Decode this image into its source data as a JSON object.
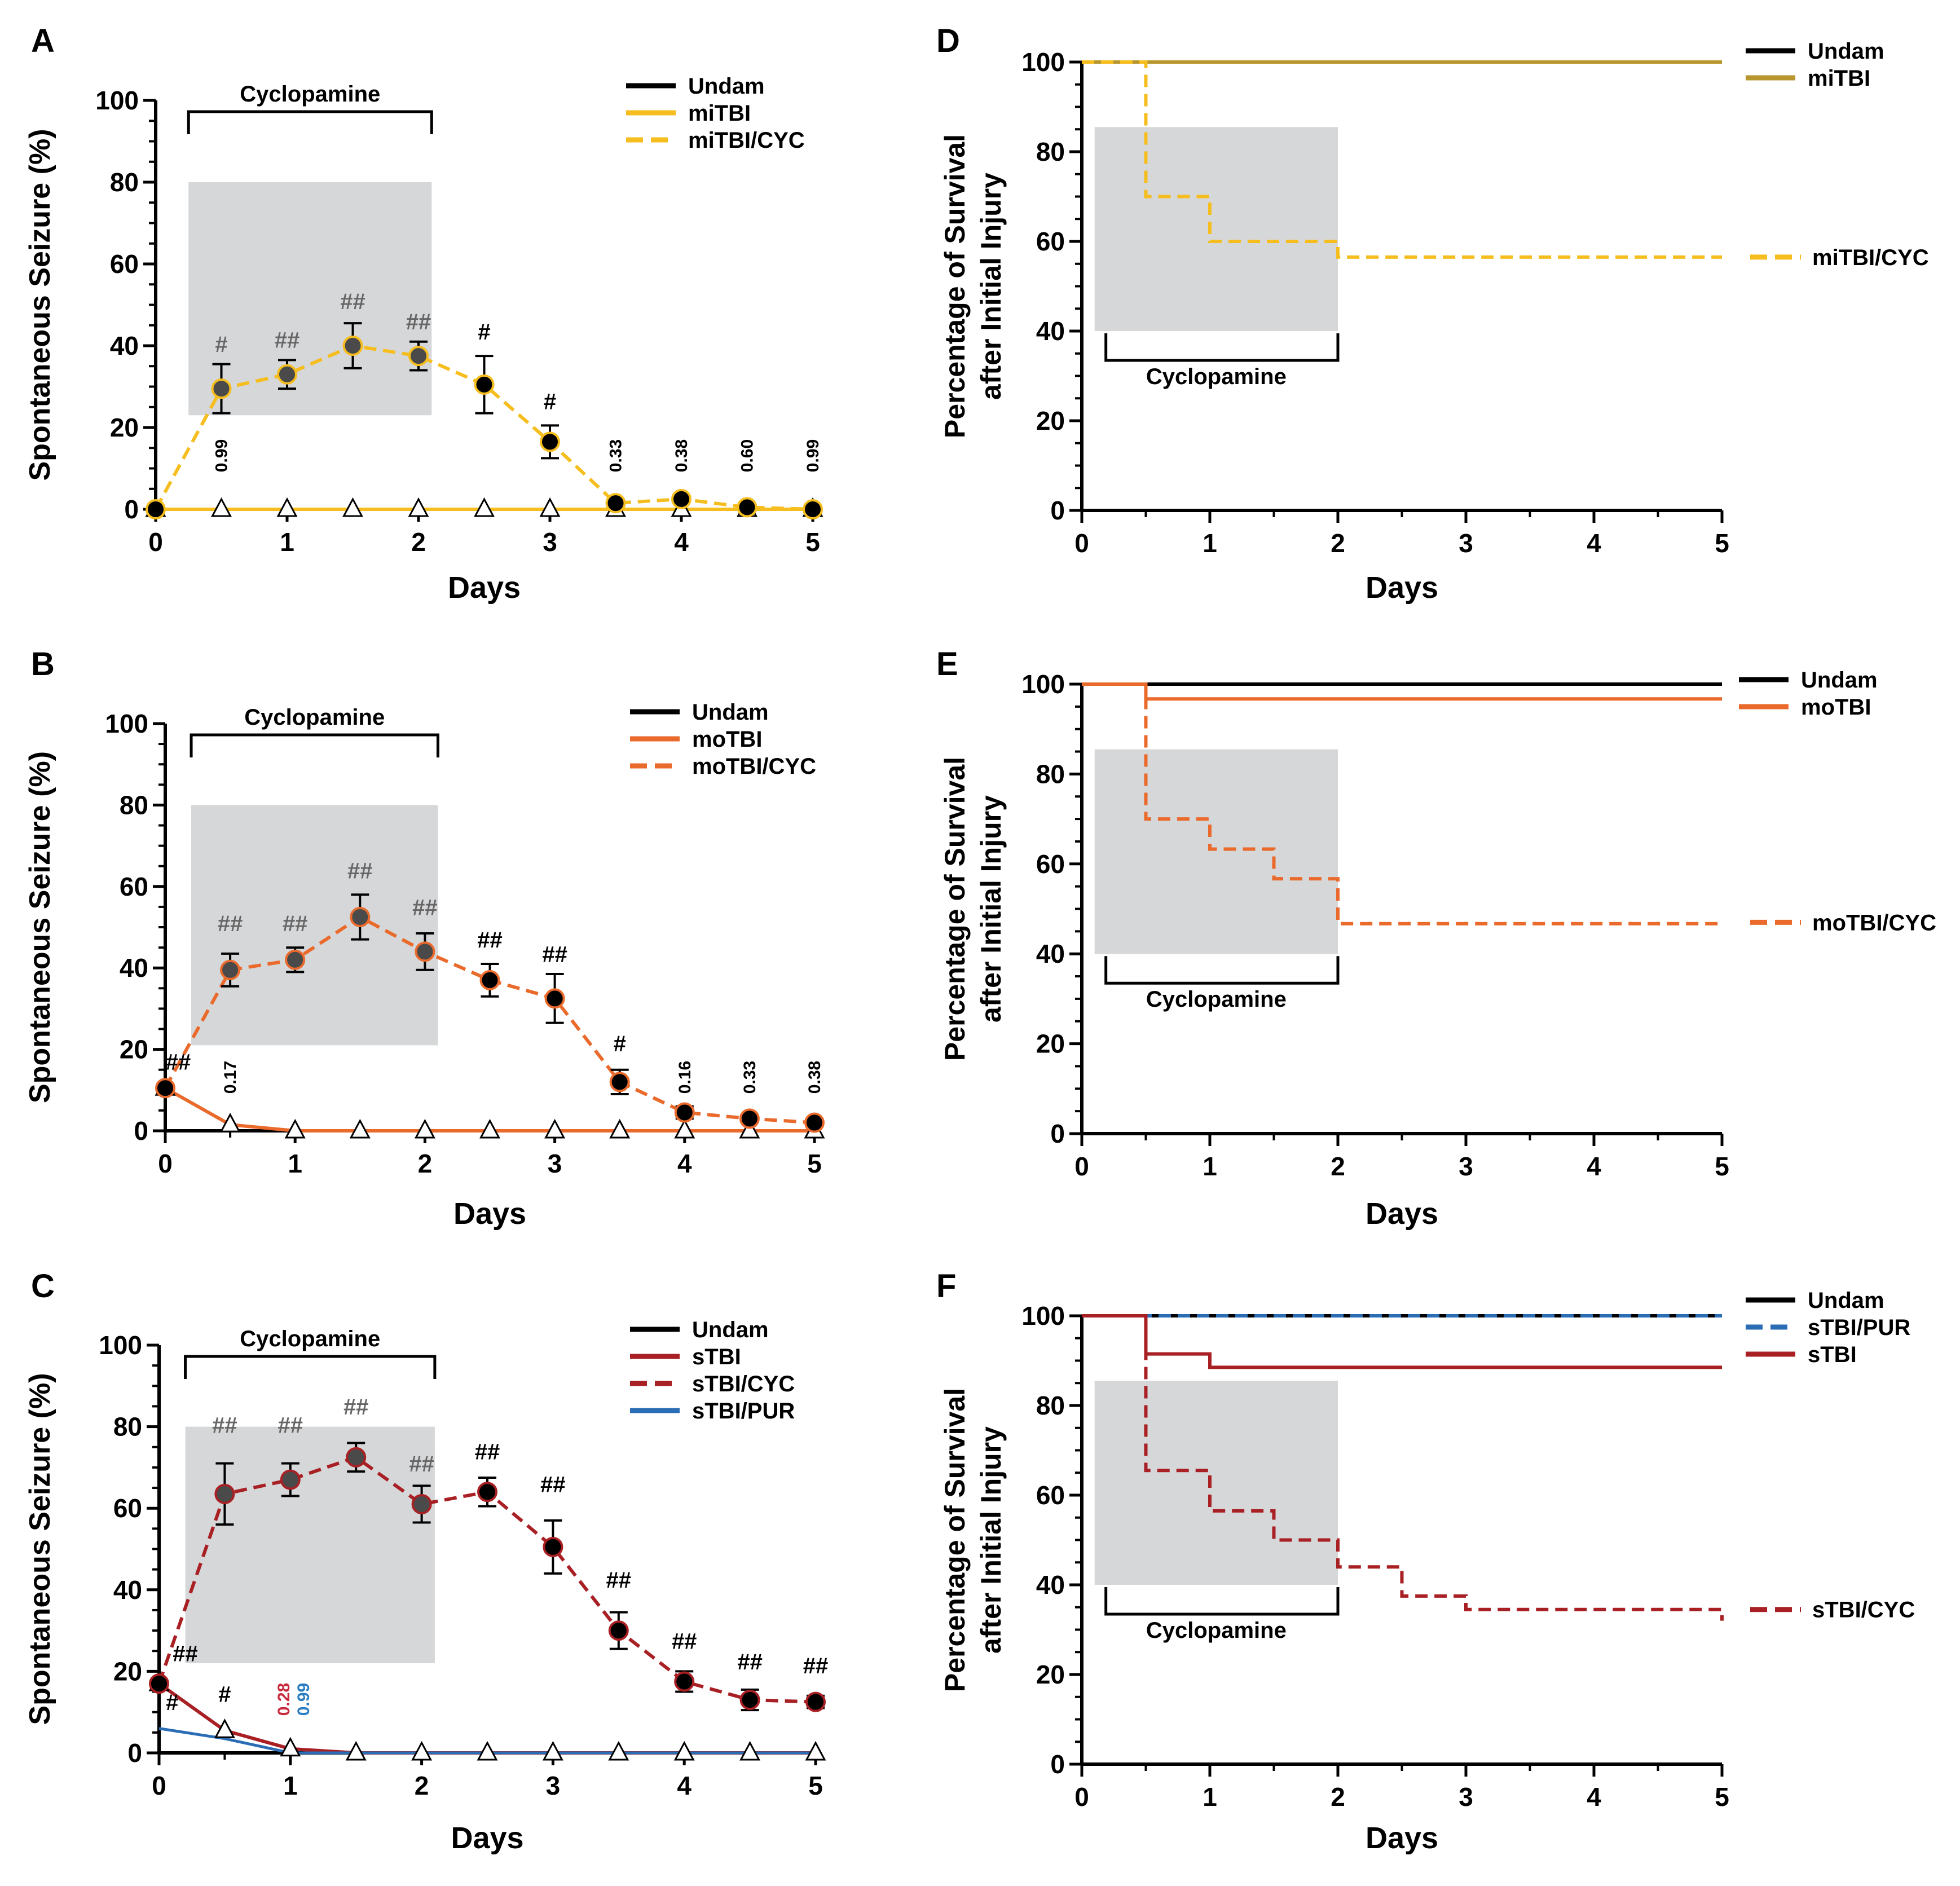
{
  "chart_data": [
    {
      "panel": "A",
      "type": "line",
      "xlabel": "Days",
      "ylabel": "Spontaneous Seizure (%)",
      "ylim": [
        0,
        100
      ],
      "xlim": [
        0,
        5
      ],
      "xticks": [
        0,
        1,
        2,
        3,
        4,
        5
      ],
      "yticks": [
        0,
        20,
        40,
        60,
        80,
        100
      ],
      "treatment": {
        "label": "Cyclopamine",
        "x_start": 0.25,
        "x_end": 2.1,
        "y_top": 80,
        "y_bottom": 23
      },
      "series": [
        {
          "name": "Undam",
          "color": "#000000",
          "dash": false,
          "marker": "none",
          "x": [
            0,
            0.5,
            1,
            1.5,
            2,
            2.5,
            3,
            3.5,
            4,
            4.5,
            5
          ],
          "y": [
            0,
            0,
            0,
            0,
            0,
            0,
            0,
            0,
            0,
            0,
            0
          ]
        },
        {
          "name": "miTBI",
          "color": "#f5be1e",
          "dash": false,
          "marker": "triangle",
          "x": [
            0,
            0.5,
            1,
            1.5,
            2,
            2.5,
            3,
            3.5,
            4,
            4.5,
            5
          ],
          "y": [
            0,
            0,
            0,
            0,
            0,
            0,
            0,
            0,
            0,
            0,
            0
          ]
        },
        {
          "name": "miTBI/CYC",
          "color": "#f5be1e",
          "dash": true,
          "marker": "circle",
          "x": [
            0,
            0.5,
            1,
            1.5,
            2,
            2.5,
            3,
            3.5,
            4,
            4.5,
            5
          ],
          "y": [
            0,
            29.5,
            33,
            40,
            37.5,
            30.5,
            16.5,
            1.5,
            2.5,
            0.5,
            0
          ],
          "err": [
            0,
            6,
            3.5,
            5.5,
            3.5,
            7,
            4,
            0,
            0,
            0,
            0
          ]
        }
      ],
      "annotations": [
        {
          "x": 0.5,
          "y": 38.5,
          "text": "#",
          "color": "#666666"
        },
        {
          "x": 1,
          "y": 39.5,
          "text": "##",
          "color": "#666666"
        },
        {
          "x": 1.5,
          "y": 49,
          "text": "##",
          "color": "#666666"
        },
        {
          "x": 2,
          "y": 44,
          "text": "##",
          "color": "#666666"
        },
        {
          "x": 2.5,
          "y": 41.5,
          "text": "#",
          "color": "#000000"
        },
        {
          "x": 3,
          "y": 24.5,
          "text": "#",
          "color": "#000000"
        }
      ],
      "pvalues": [
        {
          "x": 0.5,
          "text": "0.99",
          "color": "#000000"
        },
        {
          "x": 3.5,
          "text": "0.33",
          "color": "#000000"
        },
        {
          "x": 4,
          "text": "0.38",
          "color": "#000000"
        },
        {
          "x": 4.5,
          "text": "0.60",
          "color": "#000000"
        },
        {
          "x": 5,
          "text": "0.99",
          "color": "#000000"
        }
      ]
    },
    {
      "panel": "B",
      "type": "line",
      "xlabel": "Days",
      "ylabel": "Spontaneous Seizure (%)",
      "ylim": [
        0,
        100
      ],
      "xlim": [
        0,
        5
      ],
      "xticks": [
        0,
        1,
        2,
        3,
        4,
        5
      ],
      "yticks": [
        0,
        20,
        40,
        60,
        80,
        100
      ],
      "treatment": {
        "label": "Cyclopamine",
        "x_start": 0.2,
        "x_end": 2.1,
        "y_top": 80,
        "y_bottom": 21
      },
      "series": [
        {
          "name": "Undam",
          "color": "#000000",
          "dash": false,
          "marker": "none",
          "x": [
            0,
            0.5,
            1,
            1.5,
            2,
            2.5,
            3,
            3.5,
            4,
            4.5,
            5
          ],
          "y": [
            0,
            0,
            0,
            0,
            0,
            0,
            0,
            0,
            0,
            0,
            0
          ]
        },
        {
          "name": "moTBI",
          "color": "#ea6a2c",
          "dash": false,
          "marker": "triangle",
          "x": [
            0,
            0.5,
            1,
            1.5,
            2,
            2.5,
            3,
            3.5,
            4,
            4.5,
            5
          ],
          "y": [
            10.5,
            1.5,
            0,
            0,
            0,
            0,
            0,
            0,
            0,
            0,
            0
          ]
        },
        {
          "name": "moTBI/CYC",
          "color": "#ea6a2c",
          "dash": true,
          "marker": "circle",
          "x": [
            0,
            0.5,
            1,
            1.5,
            2,
            2.5,
            3,
            3.5,
            4,
            4.5,
            5
          ],
          "y": [
            10.5,
            39.5,
            42,
            52.5,
            44,
            37,
            32.5,
            12,
            4.5,
            3,
            2
          ],
          "err": [
            0,
            4,
            3,
            5.5,
            4.5,
            4,
            6,
            3,
            1.5,
            0,
            0
          ]
        }
      ],
      "annotations": [
        {
          "x": 0.1,
          "y": 15,
          "text": "##",
          "color": "#000000"
        },
        {
          "x": 0.5,
          "y": 49,
          "text": "##",
          "color": "#666666"
        },
        {
          "x": 1,
          "y": 49,
          "text": "##",
          "color": "#666666"
        },
        {
          "x": 1.5,
          "y": 62,
          "text": "##",
          "color": "#666666"
        },
        {
          "x": 2,
          "y": 53,
          "text": "##",
          "color": "#666666"
        },
        {
          "x": 2.5,
          "y": 45,
          "text": "##",
          "color": "#000000"
        },
        {
          "x": 3,
          "y": 41.5,
          "text": "##",
          "color": "#000000"
        },
        {
          "x": 3.5,
          "y": 19.5,
          "text": "#",
          "color": "#000000"
        }
      ],
      "pvalues": [
        {
          "x": 0.5,
          "text": "0.17",
          "color": "#000000"
        },
        {
          "x": 4,
          "text": "0.16",
          "color": "#000000"
        },
        {
          "x": 4.5,
          "text": "0.33",
          "color": "#000000"
        },
        {
          "x": 5,
          "text": "0.38",
          "color": "#000000"
        }
      ]
    },
    {
      "panel": "C",
      "type": "line",
      "xlabel": "Days",
      "ylabel": "Spontaneous Seizure (%)",
      "ylim": [
        0,
        100
      ],
      "xlim": [
        0,
        5
      ],
      "xticks": [
        0,
        1,
        2,
        3,
        4,
        5
      ],
      "yticks": [
        0,
        20,
        40,
        60,
        80,
        100
      ],
      "treatment": {
        "label": "Cyclopamine",
        "x_start": 0.2,
        "x_end": 2.1,
        "y_top": 80,
        "y_bottom": 22
      },
      "series": [
        {
          "name": "Undam",
          "color": "#000000",
          "dash": false,
          "marker": "none",
          "x": [
            0,
            0.5,
            1,
            1.5,
            2,
            2.5,
            3,
            3.5,
            4,
            4.5,
            5
          ],
          "y": [
            0,
            0,
            0,
            0,
            0,
            0,
            0,
            0,
            0,
            0,
            0
          ]
        },
        {
          "name": "sTBI",
          "color": "#a82024",
          "dash": false,
          "marker": "triangle",
          "x": [
            0,
            0.5,
            1,
            1.5,
            2,
            2.5,
            3,
            3.5,
            4,
            4.5,
            5
          ],
          "y": [
            17,
            5.5,
            1,
            0,
            0,
            0,
            0,
            0,
            0,
            0,
            0
          ]
        },
        {
          "name": "sTBI/CYC",
          "color": "#a82024",
          "dash": true,
          "marker": "circle",
          "x": [
            0,
            0.5,
            1,
            1.5,
            2,
            2.5,
            3,
            3.5,
            4,
            4.5,
            5
          ],
          "y": [
            17,
            63.5,
            67,
            72.5,
            61,
            64,
            50.5,
            30,
            17.5,
            13,
            12.5
          ],
          "err": [
            0,
            7.5,
            4,
            3.5,
            4.5,
            3.5,
            6.5,
            4.5,
            2.5,
            2.5,
            1.5
          ]
        },
        {
          "name": "sTBI/PUR",
          "color": "#2a6db5",
          "dash": false,
          "marker": "none",
          "x": [
            0,
            0.5,
            1,
            1.5,
            2,
            2.5,
            3,
            3.5,
            4,
            4.5,
            5
          ],
          "y": [
            6,
            3.5,
            0,
            0,
            0,
            0,
            0,
            0,
            0,
            0,
            0
          ]
        }
      ],
      "annotations": [
        {
          "x": 0.2,
          "y": 22.5,
          "text": "##",
          "color": "#000000"
        },
        {
          "x": 0.1,
          "y": 10.5,
          "text": "#",
          "color": "#000000"
        },
        {
          "x": 0.5,
          "y": 12.5,
          "text": "#",
          "color": "#000000"
        },
        {
          "x": 0.5,
          "y": 78.5,
          "text": "##",
          "color": "#666666"
        },
        {
          "x": 1,
          "y": 78.5,
          "text": "##",
          "color": "#666666"
        },
        {
          "x": 1.5,
          "y": 83,
          "text": "##",
          "color": "#666666"
        },
        {
          "x": 2,
          "y": 69,
          "text": "##",
          "color": "#666666"
        },
        {
          "x": 2.5,
          "y": 72,
          "text": "##",
          "color": "#000000"
        },
        {
          "x": 3,
          "y": 64,
          "text": "##",
          "color": "#000000"
        },
        {
          "x": 3.5,
          "y": 40.5,
          "text": "##",
          "color": "#000000"
        },
        {
          "x": 4,
          "y": 25.5,
          "text": "##",
          "color": "#000000"
        },
        {
          "x": 4.5,
          "y": 20.5,
          "text": "##",
          "color": "#000000"
        },
        {
          "x": 5,
          "y": 19.5,
          "text": "##",
          "color": "#000000"
        }
      ],
      "pvalues": [
        {
          "x": 0.95,
          "text": "0.28",
          "color": "#c8283c"
        },
        {
          "x": 1.1,
          "text": "0.99",
          "color": "#2a7dc0"
        }
      ]
    },
    {
      "panel": "D",
      "type": "line",
      "xlabel": "Days",
      "ylabel": "Percentage of Survival after Initial Injury",
      "ylim": [
        0,
        100
      ],
      "xlim": [
        0,
        5
      ],
      "xticks": [
        0,
        1,
        2,
        3,
        4,
        5
      ],
      "yticks": [
        0,
        20,
        40,
        60,
        80,
        100
      ],
      "treatment": {
        "label": "Cyclopamine",
        "x_start": 0.1,
        "x_end": 2,
        "y_top": 85.5,
        "y_bottom": 40
      },
      "legend_right": {
        "text": "miTBI/CYC",
        "y": 56.5
      },
      "series": [
        {
          "name": "Undam",
          "color": "#000000",
          "dash": false,
          "x": [
            0,
            5
          ],
          "y": [
            100,
            100
          ]
        },
        {
          "name": "miTBI",
          "color": "#b8962e",
          "dash": false,
          "x": [
            0,
            5
          ],
          "y": [
            100,
            100
          ]
        },
        {
          "name": "miTBI/CYC",
          "color": "#f5be1e",
          "dash": true,
          "step": true,
          "x": [
            0,
            0.5,
            0.5,
            1,
            1,
            2,
            2,
            5
          ],
          "y": [
            100,
            100,
            70,
            70,
            60,
            60,
            56.5,
            56.5
          ]
        }
      ]
    },
    {
      "panel": "E",
      "type": "line",
      "xlabel": "Days",
      "ylabel": "Percentage of Survival after Initial Injury",
      "ylim": [
        0,
        100
      ],
      "xlim": [
        0,
        5
      ],
      "xticks": [
        0,
        1,
        2,
        3,
        4,
        5
      ],
      "yticks": [
        0,
        20,
        40,
        60,
        80,
        100
      ],
      "treatment": {
        "label": "Cyclopamine",
        "x_start": 0.1,
        "x_end": 2,
        "y_top": 85.5,
        "y_bottom": 40
      },
      "legend_right": {
        "text": "moTBI/CYC",
        "y": 47
      },
      "series": [
        {
          "name": "Undam",
          "color": "#000000",
          "dash": false,
          "x": [
            0,
            5
          ],
          "y": [
            100,
            100
          ]
        },
        {
          "name": "moTBI",
          "color": "#ea6a2c",
          "dash": false,
          "step": true,
          "x": [
            0,
            0.5,
            0.5,
            5
          ],
          "y": [
            100,
            100,
            96.7,
            96.7
          ]
        },
        {
          "name": "moTBI/CYC",
          "color": "#ea6a2c",
          "dash": true,
          "step": true,
          "x": [
            0,
            0.5,
            0.5,
            1,
            1,
            1.5,
            1.5,
            2,
            2,
            5
          ],
          "y": [
            100,
            100,
            70,
            70,
            63.3,
            63.3,
            56.7,
            56.7,
            46.7,
            46.7
          ]
        }
      ]
    },
    {
      "panel": "F",
      "type": "line",
      "xlabel": "Days",
      "ylabel": "Percentage of Survival after Initial Injury",
      "ylim": [
        0,
        100
      ],
      "xlim": [
        0,
        5
      ],
      "xticks": [
        0,
        1,
        2,
        3,
        4,
        5
      ],
      "yticks": [
        0,
        20,
        40,
        60,
        80,
        100
      ],
      "treatment": {
        "label": "Cyclopamine",
        "x_start": 0.1,
        "x_end": 2,
        "y_top": 85.5,
        "y_bottom": 40
      },
      "legend_right": {
        "text": "sTBI/CYC",
        "y": 34.5
      },
      "series": [
        {
          "name": "Undam",
          "color": "#000000",
          "dash": false,
          "x": [
            0,
            5
          ],
          "y": [
            100,
            100
          ]
        },
        {
          "name": "sTBI/PUR",
          "color": "#2a6db5",
          "dash": true,
          "x": [
            0,
            5
          ],
          "y": [
            100,
            100
          ]
        },
        {
          "name": "sTBI",
          "color": "#a82024",
          "dash": false,
          "step": true,
          "x": [
            0,
            0.5,
            0.5,
            1,
            1,
            5
          ],
          "y": [
            100,
            100,
            91.5,
            91.5,
            88.5,
            88.5
          ]
        },
        {
          "name": "sTBI/CYC",
          "color": "#a82024",
          "dash": true,
          "step": true,
          "x": [
            0,
            0.5,
            0.5,
            1,
            1,
            1.5,
            1.5,
            2,
            2,
            2.5,
            2.5,
            3,
            3,
            5,
            5
          ],
          "y": [
            100,
            100,
            65.5,
            65.5,
            56.5,
            56.5,
            50,
            50,
            44,
            44,
            37.5,
            37.5,
            34.5,
            34.5,
            32
          ]
        }
      ]
    }
  ]
}
